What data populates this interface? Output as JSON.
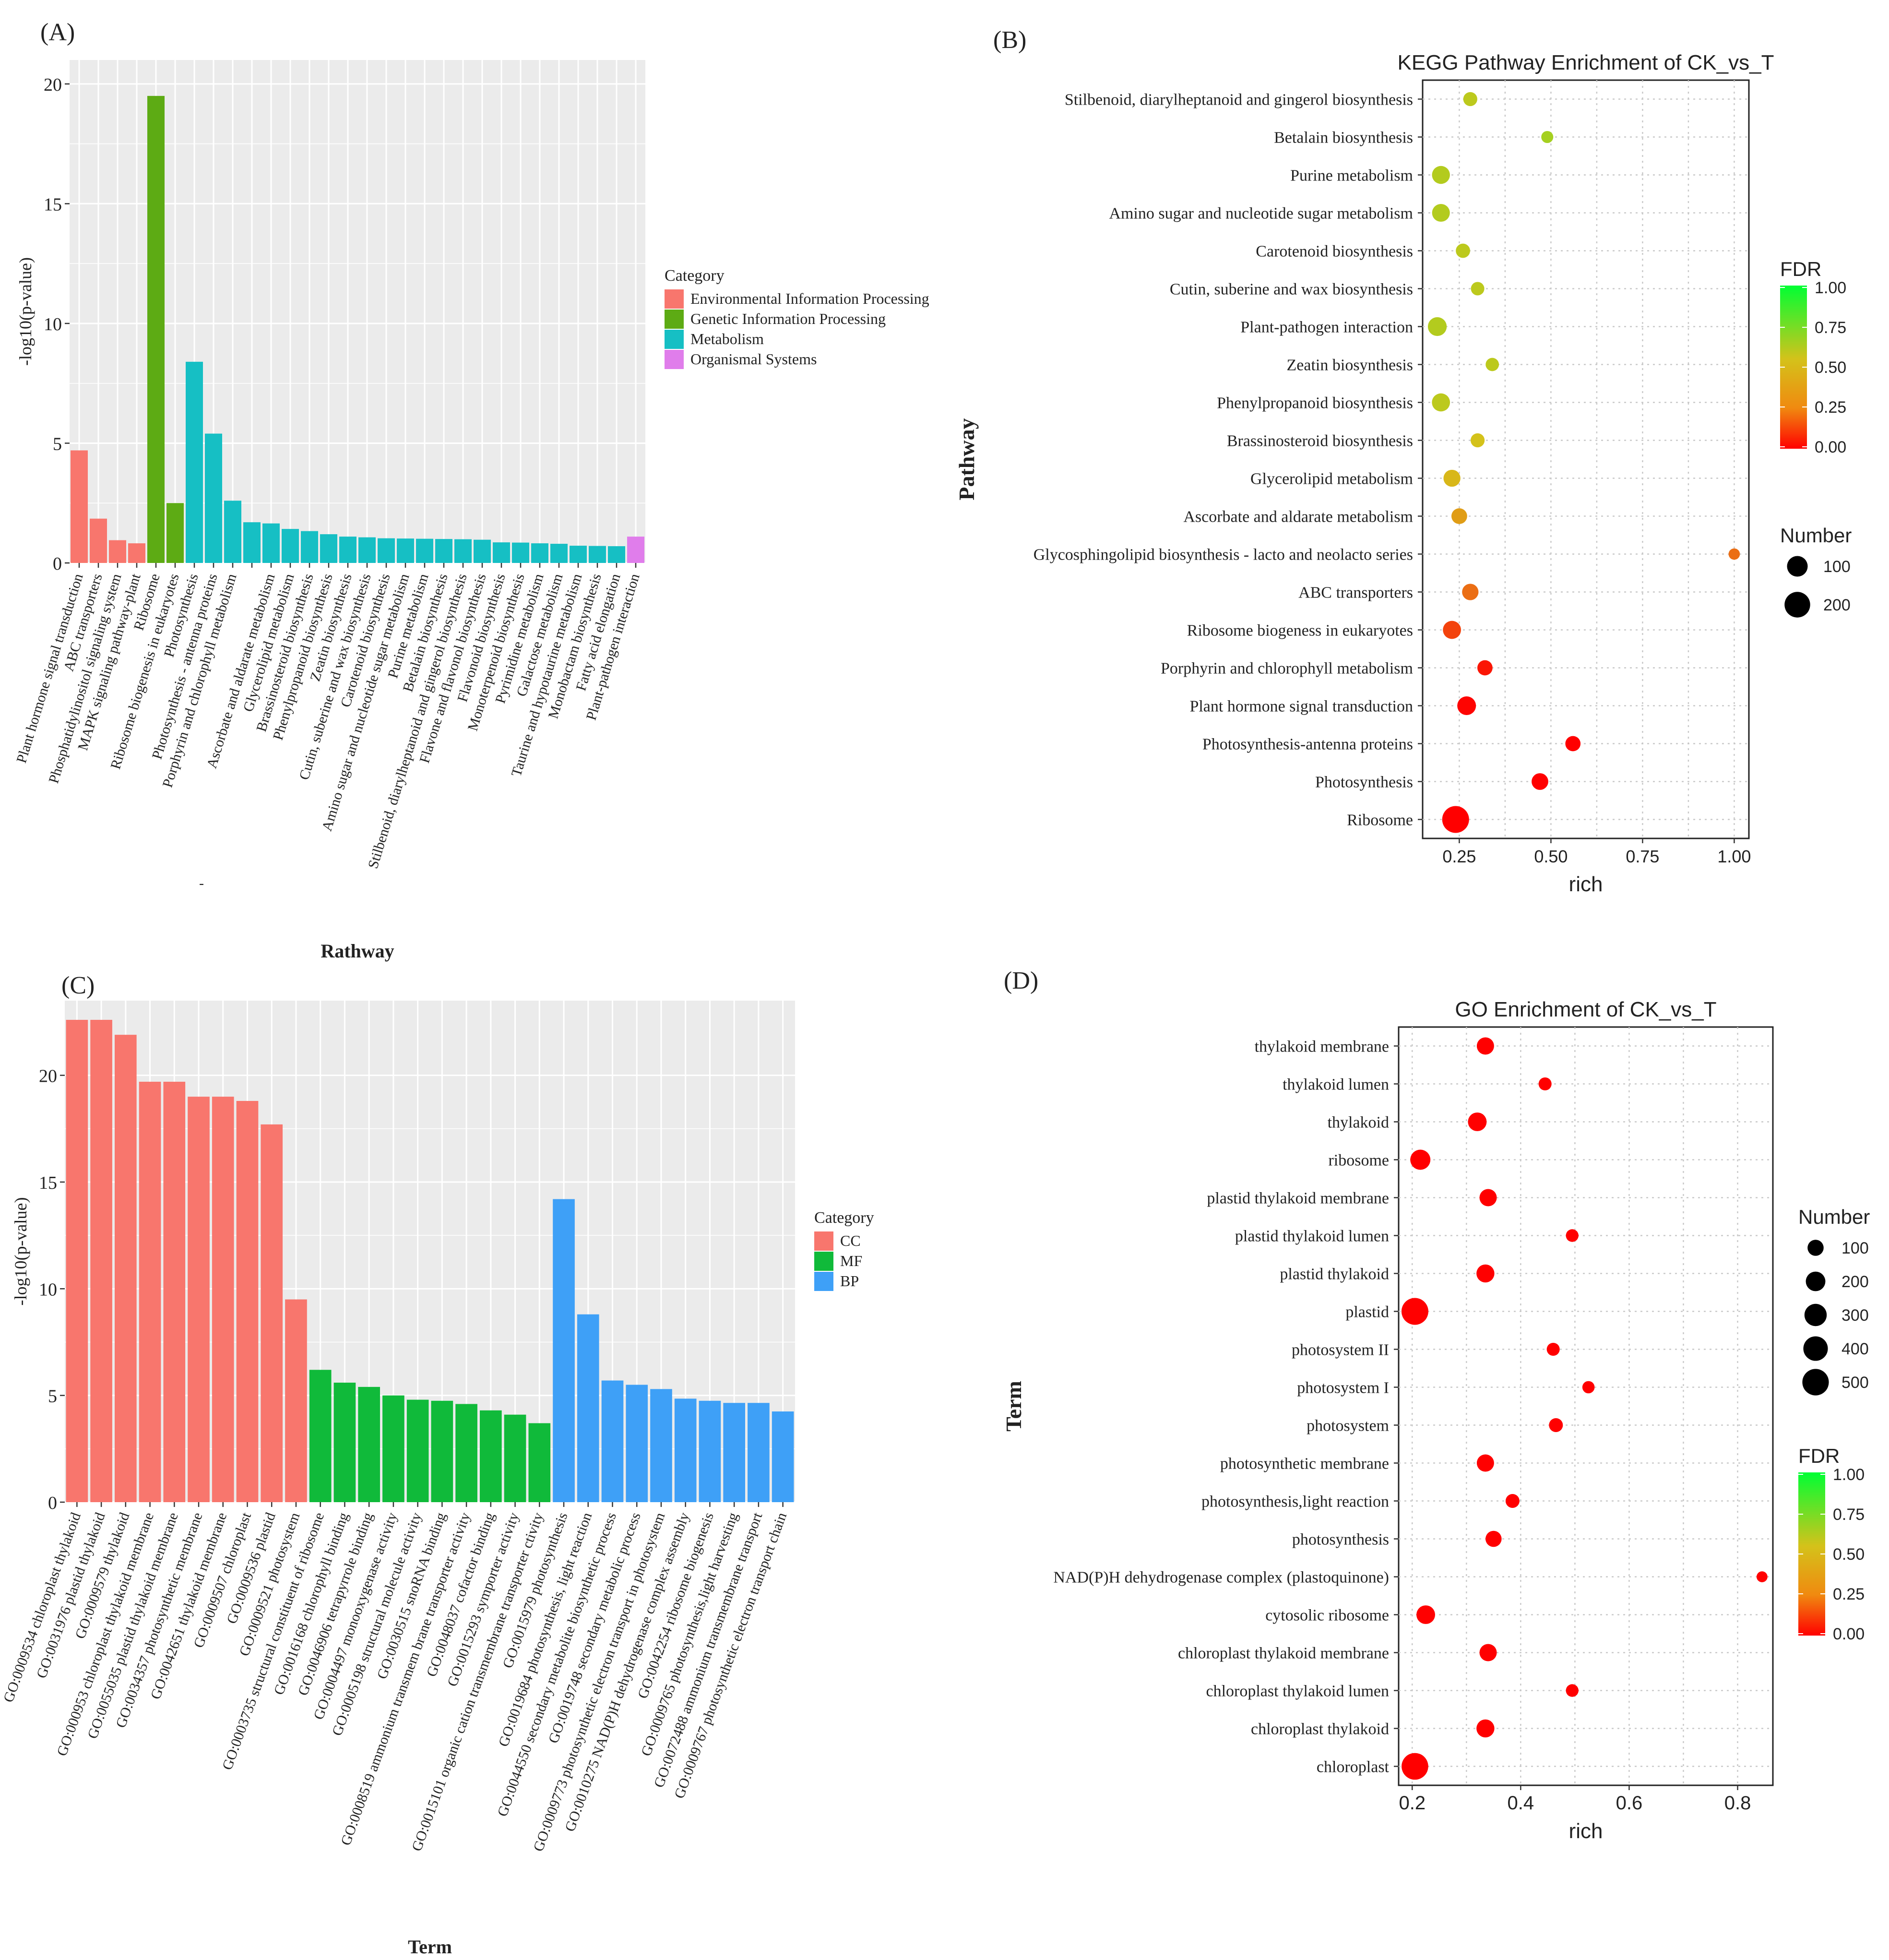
{
  "colors": {
    "cat_env": "#F8766D",
    "cat_gen": "#5DAB14",
    "cat_met": "#16BFC4",
    "cat_org": "#E07DEB",
    "cat_cc": "#F8766D",
    "cat_mf": "#10BA3A",
    "cat_bp": "#3EA0F7",
    "fdr_low": "#FF0000",
    "fdr_mid": "#D4C21A",
    "fdr_high": "#00FF33"
  },
  "chart_data": [
    {
      "id": "A",
      "panel_label": "(A)",
      "type": "bar",
      "title": "",
      "xlabel": "Rathway",
      "ylabel": "-log10(p-value)",
      "ylim": [
        0,
        21
      ],
      "yticks": [
        0,
        5,
        10,
        15,
        20
      ],
      "legend_title": "Category",
      "legend_position": "right",
      "legend": [
        {
          "name": "Environmental Information Processing",
          "color_key": "cat_env"
        },
        {
          "name": "Genetic Information Processing",
          "color_key": "cat_gen"
        },
        {
          "name": "Metabolism",
          "color_key": "cat_met"
        },
        {
          "name": "Organismal Systems",
          "color_key": "cat_org"
        }
      ],
      "categories": [
        "Plant hormone signal transduction",
        "ABC transporters",
        "Phosphatidylinositol signaling system",
        "MAPK signaling pathway-plant",
        "Ribosome",
        "Ribosome biogenesis in eukaryotes",
        "Photosynthesis",
        "Photosynthesis - antenna proteins",
        "Porphyrin and chlorophyll metabolism",
        "",
        "Ascorbate and aldarate metabolism",
        "Glycerolipid metabolism",
        "Brassinosteroid biosynthesis",
        "Phenylpropanoid biosynthesis",
        "Zeatin biosynthesis",
        "Cutin, suberine and wax biosynthesis",
        "Carotenoid biosynthesis",
        "Amino sugar and nucleotide sugar metabolism",
        "Purine metabolism",
        "Betalain biosynthesis",
        "Stilbenoid, diarylheptanoid and gingerol biosynthesis",
        "Flavone and flavonol biosynthesis",
        "Flavonoid biosynthesis",
        "Monoterpenoid biosynthesis",
        "Pyrimidine metabolism",
        "Galactose metabolism",
        "Taurine and hypotaurine metabolism",
        "Monobactam biosynthesis",
        "Fatty acid elongation",
        "Plant-pathogen interaction"
      ],
      "values": [
        4.7,
        1.85,
        0.95,
        0.82,
        19.5,
        2.5,
        8.4,
        5.4,
        2.6,
        1.7,
        1.65,
        1.42,
        1.33,
        1.2,
        1.1,
        1.07,
        1.03,
        1.02,
        1.01,
        1.0,
        0.99,
        0.97,
        0.86,
        0.85,
        0.82,
        0.8,
        0.72,
        0.71,
        0.7,
        1.1
      ],
      "bar_categories": [
        "env",
        "env",
        "env",
        "env",
        "gen",
        "gen",
        "met",
        "met",
        "met",
        "met",
        "met",
        "met",
        "met",
        "met",
        "met",
        "met",
        "met",
        "met",
        "met",
        "met",
        "met",
        "met",
        "met",
        "met",
        "met",
        "met",
        "met",
        "met",
        "met",
        "org"
      ],
      "extra_tick_mark": "-"
    },
    {
      "id": "B",
      "panel_label": "(B)",
      "type": "scatter",
      "title": "KEGG Pathway Enrichment of CK_vs_T",
      "xlabel": "rich",
      "ylabel": "Pathway",
      "xlim": [
        0.15,
        1.04
      ],
      "xticks": [
        0.25,
        0.5,
        0.75,
        1.0
      ],
      "xtick_labels": [
        "0.25",
        "0.50",
        "0.75",
        "1.00"
      ],
      "size_legend_title": "Number",
      "size_legend": [
        100,
        200
      ],
      "color_legend_title": "FDR",
      "color_legend_ticks": [
        "1.00",
        "0.75",
        "0.50",
        "0.25",
        "0.00"
      ],
      "legend_position": "right",
      "points": [
        {
          "term": "Stilbenoid, diarylheptanoid and gingerol biosynthesis",
          "rich": 0.28,
          "number": 20,
          "fdr": 0.6
        },
        {
          "term": "Betalain biosynthesis",
          "rich": 0.49,
          "number": 8,
          "fdr": 0.65
        },
        {
          "term": "Purine metabolism",
          "rich": 0.2,
          "number": 60,
          "fdr": 0.62
        },
        {
          "term": "Amino sugar and nucleotide sugar metabolism",
          "rich": 0.2,
          "number": 58,
          "fdr": 0.62
        },
        {
          "term": "Carotenoid biosynthesis",
          "rich": 0.26,
          "number": 22,
          "fdr": 0.6
        },
        {
          "term": "Cutin, suberine and wax biosynthesis",
          "rich": 0.3,
          "number": 16,
          "fdr": 0.6
        },
        {
          "term": "Plant-pathogen interaction",
          "rich": 0.19,
          "number": 72,
          "fdr": 0.62
        },
        {
          "term": "Zeatin biosynthesis",
          "rich": 0.34,
          "number": 15,
          "fdr": 0.6
        },
        {
          "term": "Phenylpropanoid biosynthesis",
          "rich": 0.2,
          "number": 62,
          "fdr": 0.6
        },
        {
          "term": "Brassinosteroid biosynthesis",
          "rich": 0.3,
          "number": 20,
          "fdr": 0.55
        },
        {
          "term": "Glycerolipid metabolism",
          "rich": 0.23,
          "number": 48,
          "fdr": 0.5
        },
        {
          "term": "Ascorbate and aldarate metabolism",
          "rich": 0.25,
          "number": 35,
          "fdr": 0.38
        },
        {
          "term": "Glycosphingolipid biosynthesis - lacto and neolacto series",
          "rich": 1.0,
          "number": 5,
          "fdr": 0.3
        },
        {
          "term": "ABC transporters",
          "rich": 0.28,
          "number": 42,
          "fdr": 0.3
        },
        {
          "term": "Ribosome biogeness in eukaryotes",
          "rich": 0.23,
          "number": 62,
          "fdr": 0.18
        },
        {
          "term": "Porphyrin and chlorophyll metabolism",
          "rich": 0.32,
          "number": 30,
          "fdr": 0.06
        },
        {
          "term": "Plant hormone signal transduction",
          "rich": 0.27,
          "number": 70,
          "fdr": 0.01
        },
        {
          "term": "Photosynthesis-antenna proteins",
          "rich": 0.56,
          "number": 30,
          "fdr": 0.0
        },
        {
          "term": "Photosynthesis",
          "rich": 0.47,
          "number": 45,
          "fdr": 0.0
        },
        {
          "term": "Ribosome",
          "rich": 0.24,
          "number": 230,
          "fdr": 0.0
        }
      ]
    },
    {
      "id": "C",
      "panel_label": "(C)",
      "type": "bar",
      "title": "",
      "xlabel": "Term",
      "ylabel": "-log10(p-value)",
      "ylim": [
        0,
        23.5
      ],
      "yticks": [
        0,
        5,
        10,
        15,
        20
      ],
      "legend_title": "Category",
      "legend_position": "right",
      "legend": [
        {
          "name": "CC",
          "color_key": "cat_cc"
        },
        {
          "name": "MF",
          "color_key": "cat_mf"
        },
        {
          "name": "BP",
          "color_key": "cat_bp"
        }
      ],
      "categories": [
        "GO:0009534 chloroplast thylakoid",
        "GO:0031976 plastid thylakoid",
        "GO:0009579 thylakoid",
        "GO:000953 chloroplast thylakoid membrane",
        "GO:0055035 plastid thylakoid membrane",
        "GO:0034357 photosynthetic membrane",
        "GO:0042651 thylakoid membrane",
        "GO:0009507 chloroplast",
        "GO:0009536 plastid",
        "GO:0009521 photosystem",
        "GO:0003735 structural constituent of ribosome",
        "GO:0016168 chlorophyll binding",
        "GO:0046906 tetrapyrrole binding",
        "GO:0004497 monooxygenase activity",
        "GO:0005198 structural molecule activity",
        "GO:0030515 snoRNA binding",
        "GO:0008519 ammonium transmem brane transporter activity",
        "GO:0048037 cofactor binding",
        "GO:0015293 symporter activity",
        "GO:0015101 organic cation transmembrane transporter ctivity",
        "GO:0015979 photosynthesis",
        "GO:0019684 photosynthesis, light reaction",
        "GO:0044550 secondary metabolite biosynthetic process",
        "GO:0019748 secondary metabolic process",
        "GO:0009773 photosynthetic electron transport in photosystem",
        "GO:0010275 NAD(P)H dehydrogenase complex assembly",
        "GO:0042254 ribosome biogenesis",
        "GO:0009765 photosynthesis,light harvesting",
        "GO:0072488 ammonium transmembrane transport",
        "GO:0009767 photosynthetic electron transport chain"
      ],
      "values": [
        22.6,
        22.6,
        21.9,
        19.7,
        19.7,
        19.0,
        19.0,
        18.8,
        17.7,
        9.5,
        6.2,
        5.6,
        5.4,
        5.0,
        4.8,
        4.75,
        4.6,
        4.3,
        4.1,
        3.7,
        14.2,
        8.8,
        5.7,
        5.5,
        5.3,
        4.85,
        4.75,
        4.65,
        4.65,
        4.25
      ],
      "bar_categories": [
        "cc",
        "cc",
        "cc",
        "cc",
        "cc",
        "cc",
        "cc",
        "cc",
        "cc",
        "cc",
        "mf",
        "mf",
        "mf",
        "mf",
        "mf",
        "mf",
        "mf",
        "mf",
        "mf",
        "mf",
        "bp",
        "bp",
        "bp",
        "bp",
        "bp",
        "bp",
        "bp",
        "bp",
        "bp",
        "bp"
      ]
    },
    {
      "id": "D",
      "panel_label": "(D)",
      "type": "scatter",
      "title": "GO Enrichment of CK_vs_T",
      "xlabel": "rich",
      "ylabel": "Term",
      "xlim": [
        0.175,
        0.865
      ],
      "xticks": [
        0.2,
        0.4,
        0.6,
        0.8
      ],
      "xtick_labels": [
        "0.2",
        "0.4",
        "0.6",
        "0.8"
      ],
      "size_legend_title": "Number",
      "size_legend": [
        100,
        200,
        300,
        400,
        500
      ],
      "color_legend_title": "FDR",
      "color_legend_ticks": [
        "1.00",
        "0.75",
        "0.50",
        "0.25",
        "0.00"
      ],
      "legend_position": "right",
      "points": [
        {
          "term": "thylakoid membrane",
          "rich": 0.335,
          "number": 130,
          "fdr": 0.0
        },
        {
          "term": "thylakoid lumen",
          "rich": 0.445,
          "number": 40,
          "fdr": 0.0
        },
        {
          "term": "thylakoid",
          "rich": 0.32,
          "number": 170,
          "fdr": 0.0
        },
        {
          "term": "ribosome",
          "rich": 0.215,
          "number": 220,
          "fdr": 0.0
        },
        {
          "term": "plastid thylakoid membrane",
          "rich": 0.34,
          "number": 130,
          "fdr": 0.0
        },
        {
          "term": "plastid thylakoid lumen",
          "rich": 0.495,
          "number": 35,
          "fdr": 0.0
        },
        {
          "term": "plastid thylakoid",
          "rich": 0.335,
          "number": 150,
          "fdr": 0.0
        },
        {
          "term": "plastid",
          "rich": 0.205,
          "number": 520,
          "fdr": 0.0
        },
        {
          "term": "photosystem II",
          "rich": 0.46,
          "number": 40,
          "fdr": 0.0
        },
        {
          "term": "photosystem I",
          "rich": 0.525,
          "number": 30,
          "fdr": 0.0
        },
        {
          "term": "photosystem",
          "rich": 0.465,
          "number": 55,
          "fdr": 0.0
        },
        {
          "term": "photosynthetic membrane",
          "rich": 0.335,
          "number": 130,
          "fdr": 0.0
        },
        {
          "term": "photosynthesis,light reaction",
          "rich": 0.385,
          "number": 55,
          "fdr": 0.0
        },
        {
          "term": "photosynthesis",
          "rich": 0.35,
          "number": 100,
          "fdr": 0.0
        },
        {
          "term": "NAD(P)H dehydrogenase complex (plastoquinone)",
          "rich": 0.845,
          "number": 15,
          "fdr": 0.0
        },
        {
          "term": "cytosolic ribosome",
          "rich": 0.225,
          "number": 170,
          "fdr": 0.0
        },
        {
          "term": "chloroplast thylakoid membrane",
          "rich": 0.34,
          "number": 130,
          "fdr": 0.0
        },
        {
          "term": "chloroplast thylakoid lumen",
          "rich": 0.495,
          "number": 35,
          "fdr": 0.0
        },
        {
          "term": "chloroplast thylakoid",
          "rich": 0.335,
          "number": 150,
          "fdr": 0.0
        },
        {
          "term": "chloroplast",
          "rich": 0.205,
          "number": 510,
          "fdr": 0.0
        }
      ]
    }
  ]
}
